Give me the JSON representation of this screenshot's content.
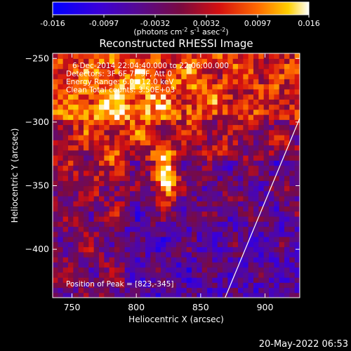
{
  "chart_data": {
    "type": "heatmap",
    "title": "Reconstructed RHESSI Image",
    "xlabel": "Heliocentric X (arcsec)",
    "ylabel": "Heliocentric Y (arcsec)",
    "xlim": [
      735,
      927
    ],
    "ylim": [
      -438,
      -246
    ],
    "x_ticks": [
      750,
      800,
      850,
      900
    ],
    "y_ticks": [
      -400,
      -350,
      -300,
      -250
    ],
    "colorbar": {
      "min": -0.016,
      "max": 0.016,
      "ticks": [
        "-0.016",
        "-0.0097",
        "-0.0032",
        "0.0032",
        "0.0097",
        "0.016"
      ],
      "unit_text": "(photons cm",
      "unit_exp1": "-2",
      "unit_mid1": " s",
      "unit_exp2": "-1",
      "unit_mid2": " asec",
      "unit_exp3": "-2",
      "unit_close": ")",
      "colormap": "blue-purple-red-orange-yellow-white"
    },
    "annotations": [
      "6-Dec-2014 22:04:40.000 to 22:06:00.000",
      "Detectors: 3F 6F 7F 9F, Att 0",
      "Energy Range: 6.0 - 12.0 keV",
      "Clean     Total counts: 3.50E+03"
    ],
    "peak_label": "Position of Peak = [823,-345]",
    "peak": [
      823,
      -345
    ],
    "limb_line": [
      [
        869,
        -438
      ],
      [
        927,
        -297
      ]
    ],
    "footer_date": "20-May-2022 06:53"
  }
}
